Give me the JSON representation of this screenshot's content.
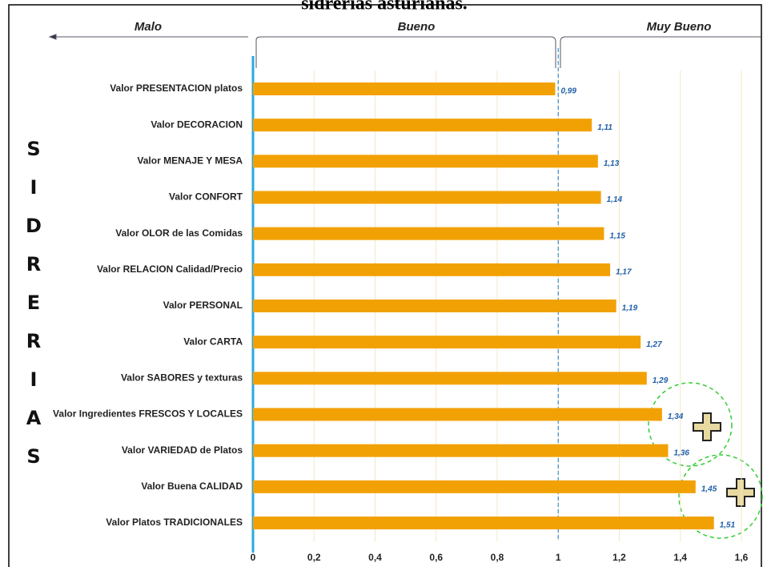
{
  "chart_data": {
    "type": "bar",
    "title": "sidrerias asturianas.",
    "side_label": "SIDRERIAS",
    "header_labels": [
      "Malo",
      "Bueno",
      "Muy Bueno"
    ],
    "categories": [
      "Valor PRESENTACION platos",
      "Valor DECORACION",
      "Valor MENAJE Y MESA",
      "Valor CONFORT",
      "Valor OLOR de las Comidas",
      "Valor RELACION Calidad/Precio",
      "Valor PERSONAL",
      "Valor CARTA",
      "Valor SABORES y texturas",
      "Valor Ingredientes FRESCOS Y LOCALES",
      "Valor VARIEDAD de Platos",
      "Valor Buena CALIDAD",
      "Valor Platos TRADICIONALES"
    ],
    "values": [
      0.99,
      1.11,
      1.13,
      1.14,
      1.15,
      1.17,
      1.19,
      1.27,
      1.29,
      1.34,
      1.36,
      1.45,
      1.51
    ],
    "value_labels": [
      "0,99",
      "1,11",
      "1,13",
      "1,14",
      "1,15",
      "1,17",
      "1,19",
      "1,27",
      "1,29",
      "1,34",
      "1,36",
      "1,45",
      "1,51"
    ],
    "color": "#f2a104",
    "reference_line": 1,
    "xlim": [
      0,
      1.6
    ],
    "xticks": [
      0,
      {
        "value": 0.2,
        "label": "0,2"
      },
      {
        "value": 0.4,
        "label": "0,4"
      },
      {
        "value": 0.6,
        "label": "0,6"
      },
      {
        "value": 0.8,
        "label": "0,8"
      },
      1,
      {
        "value": 1.2,
        "label": "1,2"
      },
      {
        "value": 1.4,
        "label": "1,4"
      },
      {
        "value": 1.6,
        "label": "1,6"
      }
    ],
    "grid": true
  }
}
